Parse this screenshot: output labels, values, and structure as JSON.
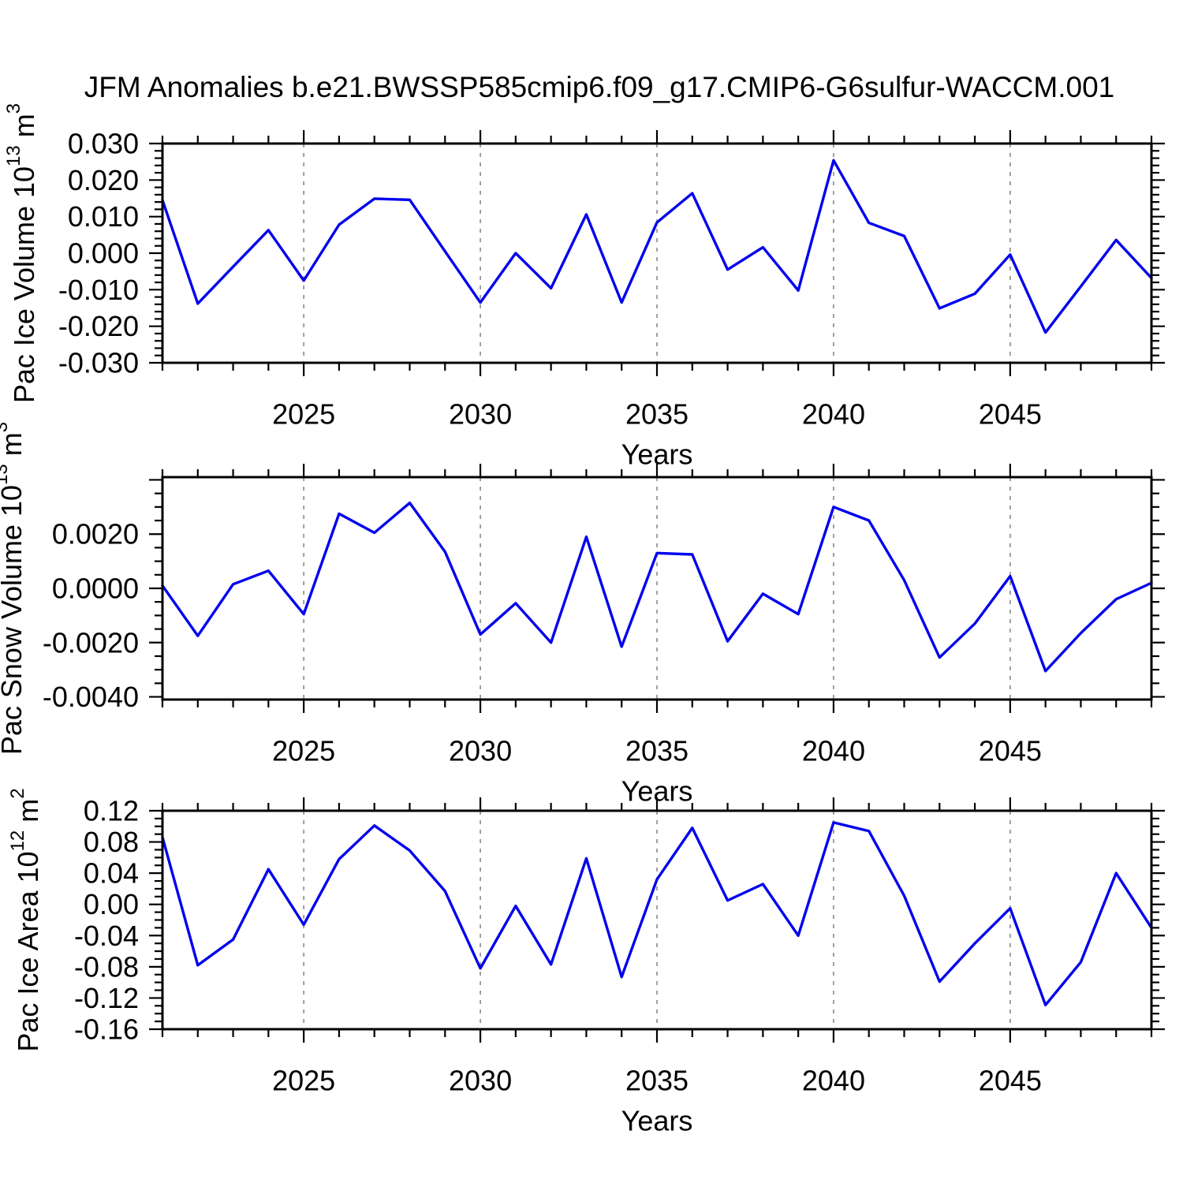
{
  "title": "JFM Anomalies b.e21.BWSSP585cmip6.f09_g17.CMIP6-G6sulfur-WACCM.001",
  "colors": {
    "line": "#0000ee",
    "grid": "#8a8a8a",
    "axis": "#000000"
  },
  "years": [
    2021,
    2022,
    2023,
    2024,
    2025,
    2026,
    2027,
    2028,
    2029,
    2030,
    2031,
    2032,
    2033,
    2034,
    2035,
    2036,
    2037,
    2038,
    2039,
    2040,
    2041,
    2042,
    2043,
    2044,
    2045,
    2046,
    2047,
    2048,
    2049
  ],
  "x_major_ticks": [
    2025,
    2030,
    2035,
    2040,
    2045
  ],
  "x_tick_labels": [
    "2025",
    "2030",
    "2035",
    "2040",
    "2045"
  ],
  "xlim": [
    2021,
    2049
  ],
  "chart_data": [
    {
      "type": "line",
      "name": "pac-ice-volume",
      "ylabel": "Pac Ice Volume 10^13 m^3",
      "ylabel_parts": [
        {
          "t": "Pac Ice Volume 10"
        },
        {
          "t": "13",
          "sup": true
        },
        {
          "t": " m"
        },
        {
          "t": "3",
          "sup": true
        }
      ],
      "xlabel": "Years",
      "ylim": [
        -0.03,
        0.03
      ],
      "y_minor_step": 0.002,
      "y_labeled_ticks": [
        {
          "v": 0.03,
          "t": "0.030"
        },
        {
          "v": 0.02,
          "t": "0.020"
        },
        {
          "v": 0.01,
          "t": "0.010"
        },
        {
          "v": 0.0,
          "t": "0.000"
        },
        {
          "v": -0.01,
          "t": "-0.010"
        },
        {
          "v": -0.02,
          "t": "-0.020"
        },
        {
          "v": -0.03,
          "t": "-0.030"
        }
      ],
      "y_extra_majors": [],
      "values": [
        0.0145,
        -0.0138,
        -0.0037,
        0.0063,
        -0.0075,
        0.0078,
        0.0149,
        0.0146,
        0.0005,
        -0.0135,
        0.0,
        -0.0096,
        0.0106,
        -0.0135,
        0.0084,
        0.0164,
        -0.0045,
        0.0016,
        -0.0102,
        0.0254,
        0.0083,
        0.0047,
        -0.0151,
        -0.0111,
        -0.0004,
        -0.0217,
        -0.0091,
        0.0036,
        -0.0068
      ]
    },
    {
      "type": "line",
      "name": "pac-snow-volume",
      "ylabel": "Pac Snow Volume 10^13 m^3",
      "ylabel_parts": [
        {
          "t": "Pac Snow Volume 10"
        },
        {
          "t": "13",
          "sup": true
        },
        {
          "t": " m"
        },
        {
          "t": "3",
          "sup": true
        }
      ],
      "xlabel": "Years",
      "ylim": [
        -0.0041,
        0.0041
      ],
      "y_minor_step": 0.0005,
      "y_labeled_ticks": [
        {
          "v": 0.002,
          "t": "0.0020"
        },
        {
          "v": 0.0,
          "t": "0.0000"
        },
        {
          "v": -0.002,
          "t": "-0.0020"
        },
        {
          "v": -0.004,
          "t": "-0.0040"
        }
      ],
      "y_extra_majors": [
        0.004
      ],
      "values": [
        0.0001,
        -0.00175,
        0.00015,
        0.00065,
        -0.00095,
        0.00275,
        0.00205,
        0.00315,
        0.00135,
        -0.0017,
        -0.00055,
        -0.002,
        0.0019,
        -0.00215,
        0.0013,
        0.00125,
        -0.00195,
        -0.0002,
        -0.00095,
        0.003,
        0.0025,
        0.0003,
        -0.00255,
        -0.0013,
        0.00045,
        -0.00305,
        -0.00165,
        -0.0004,
        0.0002
      ]
    },
    {
      "type": "line",
      "name": "pac-ice-area",
      "ylabel": "Pac Ice Area 10^12 m^2",
      "ylabel_parts": [
        {
          "t": "Pac Ice Area 10"
        },
        {
          "t": "12",
          "sup": true
        },
        {
          "t": " m"
        },
        {
          "t": "2",
          "sup": true
        }
      ],
      "xlabel": "Years",
      "ylim": [
        -0.16,
        0.12
      ],
      "y_minor_step": 0.01,
      "y_labeled_ticks": [
        {
          "v": 0.12,
          "t": "0.12"
        },
        {
          "v": 0.08,
          "t": "0.08"
        },
        {
          "v": 0.04,
          "t": "0.04"
        },
        {
          "v": 0.0,
          "t": "0.00"
        },
        {
          "v": -0.04,
          "t": "-0.04"
        },
        {
          "v": -0.08,
          "t": "-0.08"
        },
        {
          "v": -0.12,
          "t": "-0.12"
        },
        {
          "v": -0.16,
          "t": "-0.16"
        }
      ],
      "y_extra_majors": [],
      "values": [
        0.086,
        -0.078,
        -0.045,
        0.045,
        -0.026,
        0.058,
        0.101,
        0.069,
        0.017,
        -0.082,
        -0.002,
        -0.077,
        0.059,
        -0.093,
        0.032,
        0.098,
        0.005,
        0.026,
        -0.04,
        0.105,
        0.094,
        0.011,
        -0.099,
        -0.05,
        -0.005,
        -0.129,
        -0.074,
        0.04,
        -0.03
      ]
    }
  ]
}
